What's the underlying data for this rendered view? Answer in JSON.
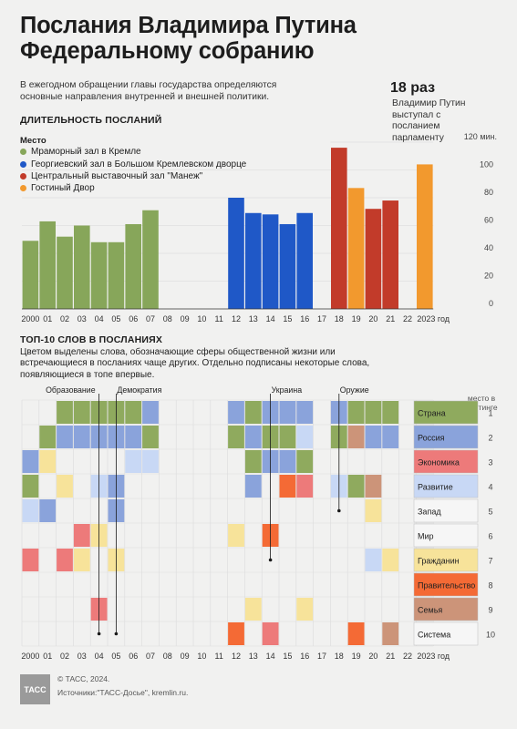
{
  "header": {
    "title_line1": "Послания Владимира Путина",
    "title_line2": "Федеральному собранию",
    "intro": "В ежегодном обращении главы государства определяются основные направления внутренней и внешней политики.",
    "count_big": "18 раз",
    "count_text": "Владимир Путин выступал с посланием парламенту"
  },
  "colors": {
    "green": "#87a65a",
    "blue": "#1f58c7",
    "red": "#c23b2a",
    "orange": "#f2992e"
  },
  "duration": {
    "section_title": "ДЛИТЕЛЬНОСТЬ ПОСЛАНИЙ",
    "legend_title": "Место",
    "legend": [
      {
        "label": "Мраморный зал в Кремле",
        "color": "#87a65a"
      },
      {
        "label": "Георгиевский зал в Большом Кремлевском дворце",
        "color": "#1f58c7"
      },
      {
        "label": "Центральный выставочный зал \"Манеж\"",
        "color": "#c23b2a"
      },
      {
        "label": "Гостиный Двор",
        "color": "#f2992e"
      }
    ]
  },
  "chart_data": [
    {
      "type": "bar",
      "ylabel_top": "120 мин.",
      "ylim": [
        0,
        120
      ],
      "yticks": [
        "0",
        "20",
        "40",
        "60",
        "80",
        "100"
      ],
      "x_labels": [
        "2000",
        "01",
        "02",
        "03",
        "04",
        "05",
        "06",
        "07",
        "08",
        "09",
        "10",
        "11",
        "12",
        "13",
        "14",
        "15",
        "16",
        "17",
        "18",
        "19",
        "20",
        "21",
        "22",
        "2023 год"
      ],
      "values": [
        49,
        63,
        52,
        60,
        48,
        48,
        61,
        71,
        null,
        null,
        null,
        null,
        80,
        69,
        68,
        61,
        69,
        null,
        116,
        87,
        72,
        78,
        null,
        104
      ],
      "venues": [
        "green",
        "green",
        "green",
        "green",
        "green",
        "green",
        "green",
        "green",
        null,
        null,
        null,
        null,
        "blue",
        "blue",
        "blue",
        "blue",
        "blue",
        null,
        "red",
        "orange",
        "red",
        "red",
        null,
        "orange"
      ]
    },
    {
      "type": "heatmap",
      "section_title": "ТОП-10 СЛОВ В ПОСЛАНИЯХ",
      "description": "Цветом выделены слова, обозначающие сферы общественной жизни или встречающиеся в посланиях чаще других. Отдельно подписаны некоторые слова, появляющиеся в топе впервые.",
      "rank_header": "место в рейтинге",
      "x_labels": [
        "2000",
        "01",
        "02",
        "03",
        "04",
        "05",
        "06",
        "07",
        "08",
        "09",
        "10",
        "11",
        "12",
        "13",
        "14",
        "15",
        "16",
        "17",
        "18",
        "19",
        "20",
        "21",
        "22",
        "2023 год"
      ],
      "words": [
        {
          "label": "Страна",
          "rank": "1",
          "color": "#8faa5e"
        },
        {
          "label": "Россия",
          "rank": "2",
          "color": "#8aa3db"
        },
        {
          "label": "Экономика",
          "rank": "3",
          "color": "#ed7a7a"
        },
        {
          "label": "Развитие",
          "rank": "4",
          "color": "#c8d8f5"
        },
        {
          "label": "Запад",
          "rank": "5",
          "color": "#f6f6f6"
        },
        {
          "label": "Мир",
          "rank": "6",
          "color": "#f6f6f6"
        },
        {
          "label": "Гражданин",
          "rank": "7",
          "color": "#f7e39a"
        },
        {
          "label": "Правительство",
          "rank": "8",
          "color": "#f46a35"
        },
        {
          "label": "Семья",
          "rank": "9",
          "color": "#cc9479"
        },
        {
          "label": "Система",
          "rank": "10",
          "color": "#f6f6f6"
        }
      ],
      "cells": [
        [
          "",
          "",
          "Страна",
          "Страна",
          "Страна",
          "Страна",
          "Страна",
          "Россия",
          "",
          "",
          "",
          "",
          "Россия",
          "Страна",
          "Россия",
          "Россия",
          "Россия",
          "",
          "Россия",
          "Страна",
          "Страна",
          "Страна",
          "",
          ""
        ],
        [
          "",
          "Страна",
          "Россия",
          "Россия",
          "Россия",
          "Россия",
          "Россия",
          "Страна",
          "",
          "",
          "",
          "",
          "Страна",
          "Россия",
          "Страна",
          "Страна",
          "Развитие",
          "",
          "Страна",
          "Семья",
          "Россия",
          "Россия",
          "",
          ""
        ],
        [
          "Россия",
          "Гражданин",
          "",
          "",
          "",
          "",
          "Развитие",
          "Развитие",
          "",
          "",
          "",
          "",
          "",
          "Страна",
          "Россия",
          "Россия",
          "Страна",
          "",
          "",
          "",
          "",
          "",
          "",
          ""
        ],
        [
          "Страна",
          "",
          "Гражданин",
          "",
          "Развитие",
          "Россия",
          "",
          "",
          "",
          "",
          "",
          "",
          "",
          "Россия",
          "",
          "Правительство",
          "Экономика",
          "",
          "Развитие",
          "Страна",
          "Семья",
          "",
          "",
          ""
        ],
        [
          "Развитие",
          "Россия",
          "",
          "",
          "",
          "Россия",
          "",
          "",
          "",
          "",
          "",
          "",
          "",
          "",
          "",
          "",
          "",
          "",
          "",
          "",
          "Гражданин",
          "",
          "",
          ""
        ],
        [
          "",
          "",
          "",
          "Экономика",
          "Гражданин",
          "",
          "",
          "",
          "",
          "",
          "",
          "",
          "Гражданин",
          "",
          "Правительство",
          "",
          "",
          "",
          "",
          "",
          "",
          "",
          "",
          ""
        ],
        [
          "Экономика",
          "",
          "Экономика",
          "Гражданин",
          "",
          "Гражданин",
          "",
          "",
          "",
          "",
          "",
          "",
          "",
          "",
          "",
          "",
          "",
          "",
          "",
          "",
          "Развитие",
          "Гражданин",
          "",
          ""
        ],
        [
          "",
          "",
          "",
          "",
          "",
          "",
          "",
          "",
          "",
          "",
          "",
          "",
          "",
          "",
          "",
          "",
          "",
          "",
          "",
          "",
          "",
          "",
          "",
          ""
        ],
        [
          "",
          "",
          "",
          "",
          "Экономика",
          "",
          "",
          "",
          "",
          "",
          "",
          "",
          "",
          "Гражданин",
          "",
          "",
          "Гражданин",
          "",
          "",
          "",
          "",
          "",
          "",
          ""
        ],
        [
          "",
          "",
          "",
          "",
          "",
          "",
          "",
          "",
          "",
          "",
          "",
          "",
          "Правительство",
          "",
          "Экономика",
          "",
          "",
          "",
          "",
          "Правительство",
          "",
          "Семья",
          "",
          ""
        ]
      ],
      "annotations": [
        {
          "label": "Образование",
          "col": 4,
          "row": 9
        },
        {
          "label": "Демократия",
          "col": 5,
          "row": 9
        },
        {
          "label": "Украина",
          "col": 14,
          "row": 6
        },
        {
          "label": "Оружие",
          "col": 18,
          "row": 4
        }
      ]
    }
  ],
  "footer": {
    "copyright": "© ТАСС, 2024.",
    "sources": "Источники:\"ТАСС-Досье\", kremlin.ru.",
    "logo": "ТАСС"
  }
}
